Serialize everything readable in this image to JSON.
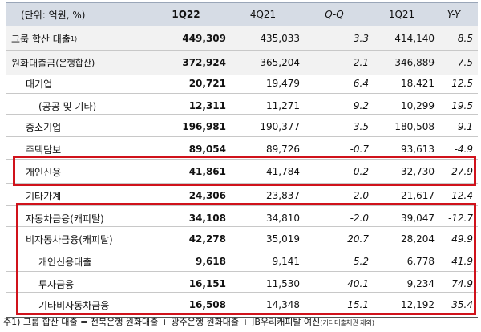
{
  "header": {
    "unit": "(단위: 억원, %)",
    "col_1q22": "1Q22",
    "col_4q21": "4Q21",
    "col_qq": "Q-Q",
    "col_1q21": "1Q21",
    "col_yy": "Y-Y"
  },
  "rows": [
    {
      "label": "그룹 합산 대출",
      "note": "1)",
      "v1q22": "449,309",
      "v4q21": "435,033",
      "qq": "3.3",
      "v1q21": "414,140",
      "yy": "8.5"
    },
    {
      "label": "원화대출금",
      "suffix": "(은행합산)",
      "v1q22": "372,924",
      "v4q21": "365,204",
      "qq": "2.1",
      "v1q21": "346,889",
      "yy": "7.5"
    },
    {
      "label": "대기업",
      "v1q22": "20,721",
      "v4q21": "19,479",
      "qq": "6.4",
      "v1q21": "18,421",
      "yy": "12.5"
    },
    {
      "label": "(공공 및 기타)",
      "v1q22": "12,311",
      "v4q21": "11,271",
      "qq": "9.2",
      "v1q21": "10,299",
      "yy": "19.5"
    },
    {
      "label": "중소기업",
      "v1q22": "196,981",
      "v4q21": "190,377",
      "qq": "3.5",
      "v1q21": "180,508",
      "yy": "9.1"
    },
    {
      "label": "주택담보",
      "v1q22": "89,054",
      "v4q21": "89,726",
      "qq": "-0.7",
      "v1q21": "93,613",
      "yy": "-4.9"
    },
    {
      "label": "개인신용",
      "v1q22": "41,861",
      "v4q21": "41,784",
      "qq": "0.2",
      "v1q21": "32,730",
      "yy": "27.9"
    },
    {
      "label": "기타가계",
      "v1q22": "24,306",
      "v4q21": "23,837",
      "qq": "2.0",
      "v1q21": "21,617",
      "yy": "12.4"
    },
    {
      "label": "자동차금융(캐피탈)",
      "v1q22": "34,108",
      "v4q21": "34,810",
      "qq": "-2.0",
      "v1q21": "39,047",
      "yy": "-12.7"
    },
    {
      "label": "비자동차금융(캐피탈)",
      "v1q22": "42,278",
      "v4q21": "35,019",
      "qq": "20.7",
      "v1q21": "28,204",
      "yy": "49.9"
    },
    {
      "label": "개인신용대출",
      "v1q22": "9,618",
      "v4q21": "9,141",
      "qq": "5.2",
      "v1q21": "6,778",
      "yy": "41.9"
    },
    {
      "label": "투자금융",
      "v1q22": "16,151",
      "v4q21": "11,530",
      "qq": "40.1",
      "v1q21": "9,234",
      "yy": "74.9"
    },
    {
      "label": "기타비자동차금융",
      "v1q22": "16,508",
      "v4q21": "14,348",
      "qq": "15.1",
      "v1q21": "12,192",
      "yy": "35.4"
    }
  ],
  "footnote": {
    "text": "주1) 그룹 합산 대출 = 전북은행 원화대출 + 광주은행 원화대출 + JB우리캐피탈 여신",
    "small": "(기타대출채권 제외)"
  },
  "colors": {
    "highlight": "#d0121b",
    "header_bg": "#d6dce5"
  }
}
